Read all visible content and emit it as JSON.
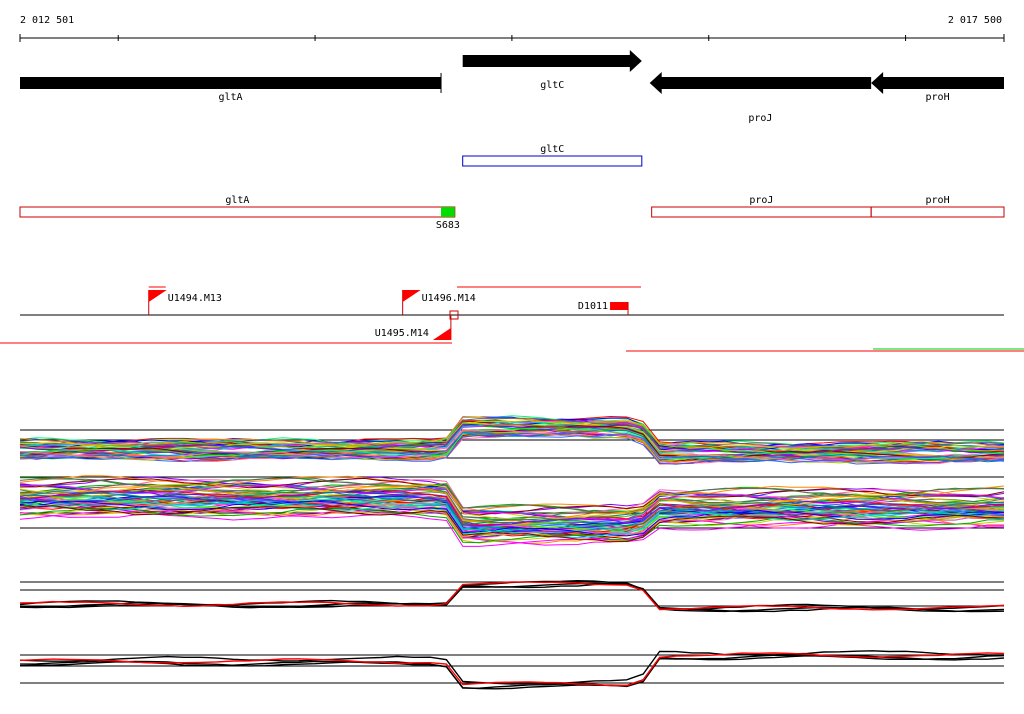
{
  "axis": {
    "start_label": "2 012 501",
    "end_label": "2 017 500",
    "start": 2012501,
    "end": 2017500
  },
  "genes": [
    {
      "name": "gltA",
      "start": 2012501,
      "end": 2014640,
      "strand": "-"
    },
    {
      "name": "gltC",
      "start": 2014750,
      "end": 2015660,
      "strand": "+"
    },
    {
      "name": "proJ",
      "start": 2015700,
      "end": 2016825,
      "strand": "-"
    },
    {
      "name": "proH",
      "start": 2016825,
      "end": 2017500,
      "strand": "-"
    }
  ],
  "operons": [
    {
      "name": "gltC",
      "start": 2014750,
      "end": 2015660,
      "color": "#0000cc"
    },
    {
      "name": "gltA",
      "start": 2012501,
      "end": 2014710,
      "color": "#cc0000"
    },
    {
      "name": "proJ",
      "start": 2015710,
      "end": 2016825,
      "color": "#cc0000"
    },
    {
      "name": "proH",
      "start": 2016825,
      "end": 2017500,
      "color": "#cc0000"
    }
  ],
  "signals": [
    {
      "name": "S683",
      "start": 2014640,
      "end": 2014710,
      "color": "#00dd00"
    }
  ],
  "promoters": [
    {
      "name": "U1494.M13",
      "pos": 2013155,
      "strand": "+"
    },
    {
      "name": "U1496.M14",
      "pos": 2014445,
      "strand": "+"
    },
    {
      "name": "U1495.M14",
      "pos": 2014690,
      "strand": "-"
    },
    {
      "name": "D1011",
      "pos": 2015590,
      "strand": "-"
    }
  ],
  "colors": {
    "gene": "#000000",
    "operon_outline": "#cc0000",
    "terminator": "#ff0000",
    "profile_highlight": "#ff0000"
  }
}
